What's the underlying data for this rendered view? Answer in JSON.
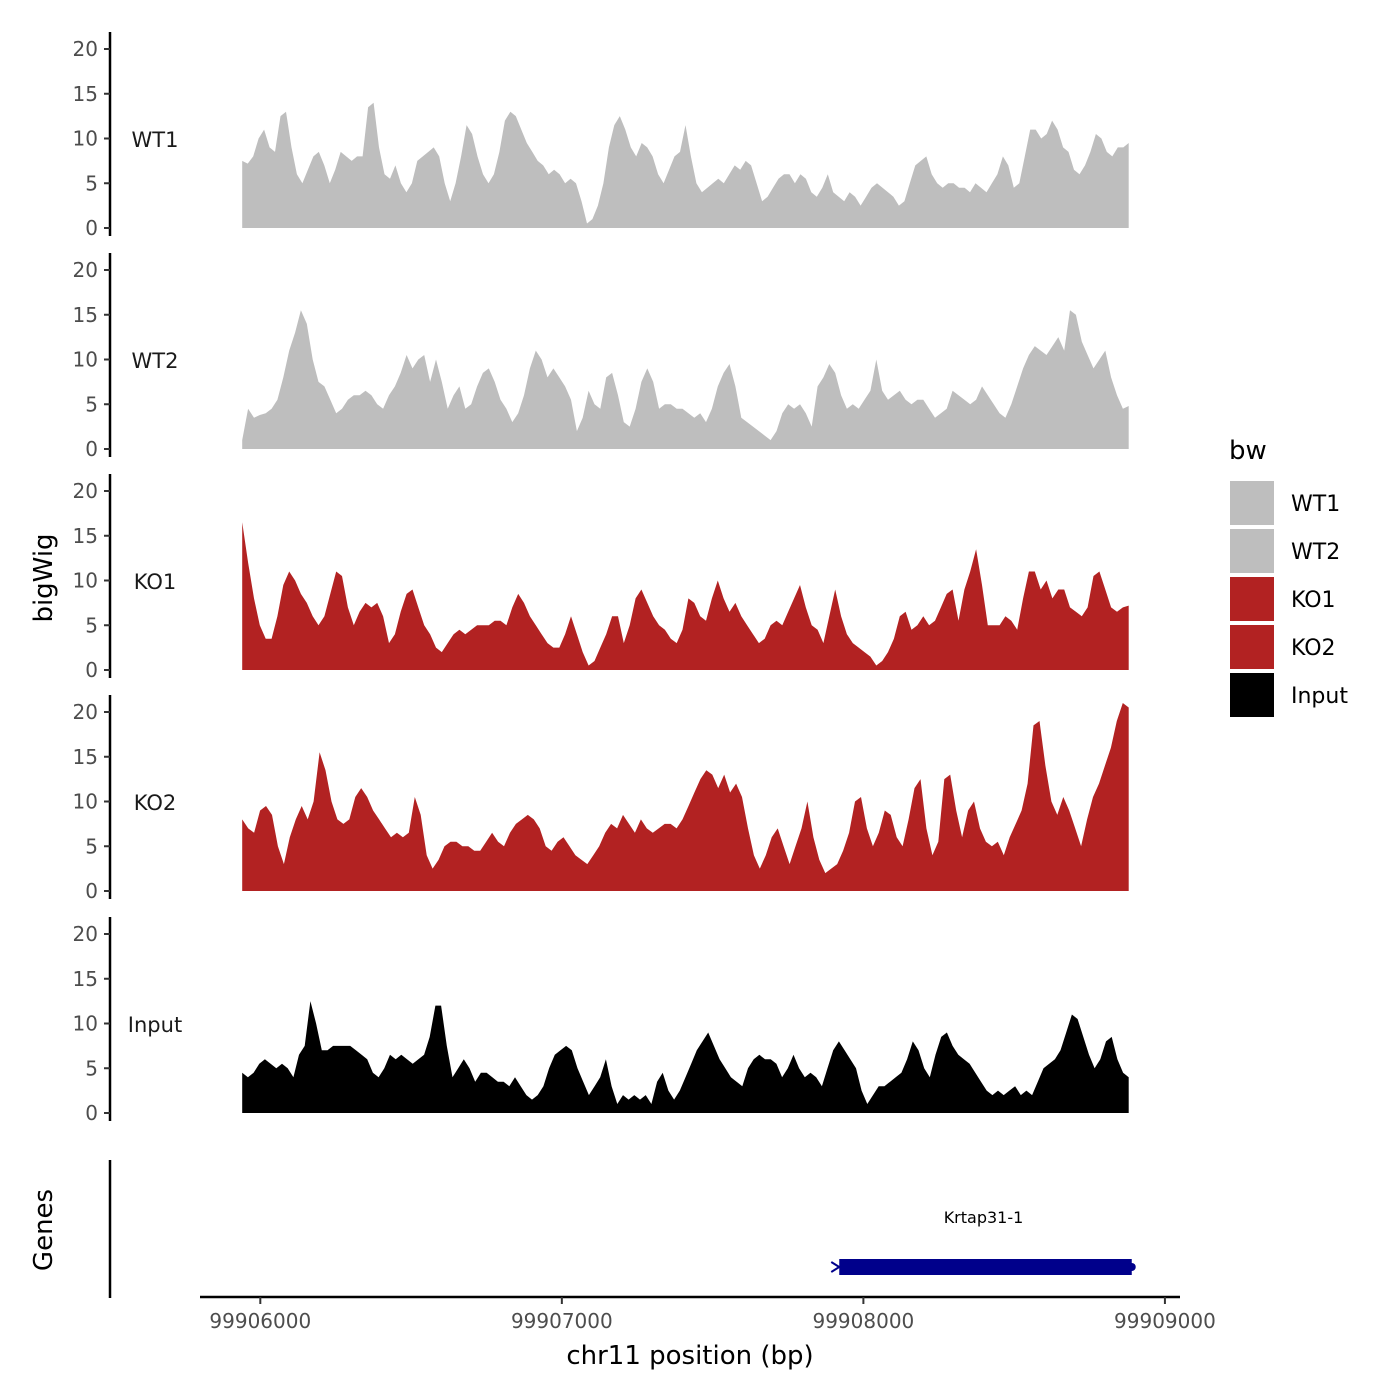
{
  "chart_data": {
    "type": "area",
    "y_axis_title": "bigWig",
    "gene_axis_title": "Genes",
    "x_axis_title": "chr11 position (bp)",
    "xlim": [
      99905800,
      99909050
    ],
    "ylim": [
      0,
      21
    ],
    "y_ticks": [
      "0",
      "5",
      "10",
      "15",
      "20"
    ],
    "x_ticks": [
      {
        "value": 99906000,
        "label": "99906000"
      },
      {
        "value": 99907000,
        "label": "99907000"
      },
      {
        "value": 99908000,
        "label": "99908000"
      },
      {
        "value": 99909000,
        "label": "99909000"
      }
    ],
    "legend": {
      "title": "bw",
      "entries": [
        {
          "label": "WT1",
          "color": "#bebebe"
        },
        {
          "label": "WT2",
          "color": "#bebebe"
        },
        {
          "label": "KO1",
          "color": "#b22222"
        },
        {
          "label": "KO2",
          "color": "#b22222"
        },
        {
          "label": "Input",
          "color": "#000000"
        }
      ]
    },
    "series": [
      {
        "name": "WT1",
        "color": "#bebebe",
        "x_start": 99905940,
        "x_end": 99908880,
        "values": [
          7.5,
          7.2,
          8.0,
          10.0,
          11.0,
          9.0,
          8.5,
          12.5,
          13.0,
          9.0,
          6.0,
          5.0,
          6.5,
          8.0,
          8.5,
          7.0,
          5.0,
          6.5,
          8.5,
          8.0,
          7.5,
          8.0,
          8.0,
          13.5,
          14.0,
          9.0,
          6.0,
          5.5,
          7.0,
          5.0,
          4.0,
          5.0,
          7.5,
          8.0,
          8.5,
          9.0,
          8.0,
          5.0,
          3.0,
          5.0,
          8.0,
          11.5,
          10.5,
          8.0,
          6.0,
          5.0,
          6.0,
          8.5,
          12.0,
          13.0,
          12.5,
          11.0,
          9.5,
          8.5,
          7.5,
          7.0,
          6.0,
          6.5,
          6.0,
          5.0,
          5.5,
          5.0,
          3.0,
          0.5,
          1.0,
          2.5,
          5.0,
          9.0,
          11.5,
          12.5,
          11.0,
          9.0,
          8.0,
          9.5,
          9.0,
          8.0,
          6.0,
          5.0,
          6.5,
          8.0,
          8.5,
          11.5,
          8.0,
          5.0,
          4.0,
          4.5,
          5.0,
          5.5,
          5.0,
          6.0,
          7.0,
          6.5,
          7.5,
          7.0,
          5.0,
          3.0,
          3.5,
          4.5,
          5.5,
          6.0,
          6.0,
          5.0,
          6.0,
          5.5,
          4.0,
          3.5,
          4.5,
          6.0,
          4.0,
          3.5,
          3.0,
          4.0,
          3.5,
          2.5,
          3.5,
          4.5,
          5.0,
          4.5,
          4.0,
          3.5,
          2.5,
          3.0,
          5.0,
          7.0,
          7.5,
          8.0,
          6.0,
          5.0,
          4.5,
          5.0,
          5.0,
          4.5,
          4.5,
          4.0,
          5.0,
          4.5,
          4.0,
          5.0,
          6.0,
          8.0,
          7.0,
          4.5,
          5.0,
          8.0,
          11.0,
          11.0,
          10.0,
          10.5,
          12.0,
          11.0,
          9.0,
          8.5,
          6.5,
          6.0,
          7.0,
          8.5,
          10.5,
          10.0,
          8.5,
          8.0,
          9.0,
          9.0,
          9.5
        ]
      },
      {
        "name": "WT2",
        "color": "#bebebe",
        "x_start": 99905940,
        "x_end": 99908880,
        "values": [
          1.0,
          4.5,
          3.5,
          3.8,
          4.0,
          4.5,
          5.5,
          8.0,
          11.0,
          13.0,
          15.5,
          14.0,
          10.0,
          7.5,
          7.0,
          5.5,
          4.0,
          4.5,
          5.5,
          6.0,
          6.0,
          6.5,
          6.0,
          5.0,
          4.5,
          6.0,
          7.0,
          8.5,
          10.5,
          9.0,
          10.0,
          10.5,
          7.5,
          10.0,
          7.5,
          4.5,
          6.0,
          7.0,
          4.5,
          5.0,
          7.0,
          8.5,
          9.0,
          7.5,
          5.5,
          4.5,
          3.0,
          4.0,
          6.0,
          9.0,
          11.0,
          10.0,
          8.0,
          9.0,
          8.0,
          7.0,
          5.5,
          2.0,
          3.5,
          6.5,
          5.0,
          4.5,
          8.0,
          8.5,
          6.0,
          3.0,
          2.5,
          4.5,
          7.5,
          9.0,
          7.5,
          4.5,
          5.0,
          5.0,
          4.5,
          4.5,
          4.0,
          3.5,
          4.0,
          3.0,
          4.5,
          7.0,
          8.5,
          9.5,
          7.0,
          3.5,
          3.0,
          2.5,
          2.0,
          1.5,
          1.0,
          2.0,
          4.0,
          5.0,
          4.5,
          5.0,
          4.0,
          2.5,
          7.0,
          8.0,
          9.5,
          8.5,
          6.0,
          4.5,
          5.0,
          4.5,
          5.5,
          6.5,
          10.0,
          6.5,
          5.5,
          6.0,
          6.5,
          5.5,
          5.0,
          5.5,
          5.5,
          4.5,
          3.5,
          4.0,
          4.5,
          6.5,
          6.0,
          5.5,
          5.0,
          5.5,
          7.0,
          6.0,
          5.0,
          4.0,
          3.5,
          5.0,
          7.0,
          9.0,
          10.5,
          11.5,
          11.0,
          10.5,
          11.5,
          12.5,
          11.0,
          15.5,
          15.0,
          12.0,
          10.5,
          9.0,
          10.0,
          11.0,
          8.0,
          6.0,
          4.5,
          4.8
        ]
      },
      {
        "name": "KO1",
        "color": "#b22222",
        "x_start": 99905940,
        "x_end": 99908880,
        "values": [
          16.5,
          12.0,
          8.0,
          5.0,
          3.5,
          3.5,
          6.0,
          9.5,
          11.0,
          10.0,
          8.5,
          7.5,
          6.0,
          5.0,
          6.0,
          8.5,
          11.0,
          10.5,
          7.0,
          5.0,
          6.5,
          7.5,
          7.0,
          7.5,
          6.0,
          3.0,
          4.0,
          6.5,
          8.5,
          9.0,
          7.0,
          5.0,
          4.0,
          2.5,
          2.0,
          3.0,
          4.0,
          4.5,
          4.0,
          4.5,
          5.0,
          5.0,
          5.0,
          5.5,
          5.5,
          5.0,
          7.0,
          8.5,
          7.5,
          6.0,
          5.0,
          4.0,
          3.0,
          2.5,
          2.5,
          4.0,
          6.0,
          4.0,
          2.0,
          0.5,
          1.0,
          2.5,
          4.0,
          6.0,
          6.0,
          3.0,
          5.0,
          8.0,
          9.0,
          7.5,
          6.0,
          5.0,
          4.5,
          3.5,
          3.0,
          4.5,
          8.0,
          7.5,
          6.0,
          5.5,
          8.0,
          10.0,
          8.0,
          6.5,
          7.5,
          6.0,
          5.0,
          4.0,
          3.0,
          3.5,
          5.0,
          5.5,
          5.0,
          6.5,
          8.0,
          9.5,
          7.0,
          5.0,
          4.5,
          3.0,
          6.0,
          9.0,
          6.0,
          4.0,
          3.0,
          2.5,
          2.0,
          1.5,
          0.5,
          1.0,
          2.0,
          3.5,
          6.0,
          6.5,
          4.5,
          5.0,
          6.0,
          5.0,
          5.5,
          7.0,
          8.5,
          9.0,
          5.5,
          9.0,
          11.0,
          13.5,
          9.5,
          5.0,
          5.0,
          5.0,
          6.0,
          5.5,
          4.5,
          8.0,
          11.0,
          11.0,
          9.0,
          10.0,
          8.0,
          9.0,
          9.0,
          7.0,
          6.5,
          6.0,
          7.0,
          10.5,
          11.0,
          9.0,
          7.0,
          6.5,
          7.0,
          7.2
        ]
      },
      {
        "name": "KO2",
        "color": "#b22222",
        "x_start": 99905940,
        "x_end": 99908880,
        "values": [
          8.0,
          7.0,
          6.5,
          9.0,
          9.5,
          8.5,
          5.0,
          3.0,
          6.0,
          8.0,
          9.5,
          8.0,
          10.0,
          15.5,
          13.5,
          10.0,
          8.0,
          7.5,
          8.0,
          10.5,
          11.5,
          10.5,
          9.0,
          8.0,
          7.0,
          6.0,
          6.5,
          6.0,
          6.5,
          10.5,
          8.5,
          4.0,
          2.5,
          3.5,
          5.0,
          5.5,
          5.5,
          5.0,
          5.0,
          4.5,
          4.5,
          5.5,
          6.5,
          5.5,
          5.0,
          6.5,
          7.5,
          8.0,
          8.5,
          8.0,
          7.0,
          5.0,
          4.5,
          5.5,
          6.0,
          5.0,
          4.0,
          3.5,
          3.0,
          4.0,
          5.0,
          6.5,
          7.5,
          7.0,
          8.5,
          7.5,
          6.5,
          8.0,
          7.0,
          6.5,
          7.0,
          7.5,
          7.5,
          7.0,
          8.0,
          9.5,
          11.0,
          12.5,
          13.5,
          13.0,
          11.5,
          13.0,
          11.0,
          12.0,
          10.5,
          7.0,
          4.0,
          2.5,
          4.0,
          6.0,
          7.0,
          5.0,
          3.0,
          5.0,
          7.0,
          10.0,
          6.0,
          3.5,
          2.0,
          2.5,
          3.0,
          4.5,
          6.5,
          10.0,
          10.5,
          7.0,
          5.0,
          6.5,
          9.0,
          8.5,
          6.0,
          5.0,
          8.0,
          11.5,
          12.5,
          7.0,
          4.0,
          5.5,
          12.5,
          13.0,
          9.0,
          6.0,
          9.0,
          10.0,
          7.0,
          5.5,
          5.0,
          5.5,
          4.0,
          6.0,
          7.5,
          9.0,
          12.0,
          18.5,
          19.0,
          14.0,
          10.0,
          8.5,
          10.5,
          9.0,
          7.0,
          5.0,
          8.0,
          10.5,
          12.0,
          14.0,
          16.0,
          19.0,
          21.0,
          20.5
        ]
      },
      {
        "name": "Input",
        "color": "#000000",
        "x_start": 99905940,
        "x_end": 99908880,
        "values": [
          4.5,
          4.0,
          4.5,
          5.5,
          6.0,
          5.5,
          5.0,
          5.5,
          5.0,
          4.0,
          6.5,
          7.5,
          12.5,
          10.0,
          7.0,
          7.0,
          7.5,
          7.5,
          7.5,
          7.5,
          7.0,
          6.5,
          6.0,
          4.5,
          4.0,
          5.0,
          6.5,
          6.0,
          6.5,
          6.0,
          5.5,
          6.0,
          6.5,
          8.5,
          12.0,
          12.0,
          7.5,
          4.0,
          5.0,
          6.0,
          5.0,
          3.5,
          4.5,
          4.5,
          4.0,
          3.5,
          3.5,
          3.0,
          4.0,
          3.0,
          2.0,
          1.5,
          2.0,
          3.0,
          5.0,
          6.5,
          7.0,
          7.5,
          7.0,
          5.0,
          3.5,
          2.0,
          3.0,
          4.0,
          6.0,
          3.0,
          1.0,
          2.0,
          1.5,
          2.0,
          1.5,
          2.0,
          1.0,
          3.5,
          4.5,
          2.5,
          1.5,
          2.5,
          4.0,
          5.5,
          7.0,
          8.0,
          9.0,
          7.5,
          6.0,
          5.0,
          4.0,
          3.5,
          3.0,
          5.0,
          6.0,
          6.5,
          6.0,
          6.0,
          5.5,
          4.0,
          5.0,
          6.5,
          5.0,
          4.0,
          4.5,
          4.0,
          3.0,
          5.0,
          7.0,
          8.0,
          7.0,
          6.0,
          5.0,
          2.5,
          1.0,
          2.0,
          3.0,
          3.0,
          3.5,
          4.0,
          4.5,
          6.0,
          8.0,
          7.0,
          5.0,
          4.0,
          6.5,
          8.5,
          9.0,
          7.5,
          6.5,
          6.0,
          5.5,
          4.5,
          3.5,
          2.5,
          2.0,
          2.5,
          2.0,
          2.5,
          3.0,
          2.0,
          2.5,
          2.0,
          3.5,
          5.0,
          5.5,
          6.0,
          7.0,
          9.0,
          11.0,
          10.5,
          8.5,
          6.5,
          5.0,
          6.0,
          8.0,
          8.5,
          6.0,
          4.5,
          4.0
        ]
      }
    ],
    "genes": [
      {
        "name": "Krtap31-1",
        "start": 99907920,
        "end": 99908890,
        "strand": "-",
        "color": "#00008b"
      }
    ]
  }
}
